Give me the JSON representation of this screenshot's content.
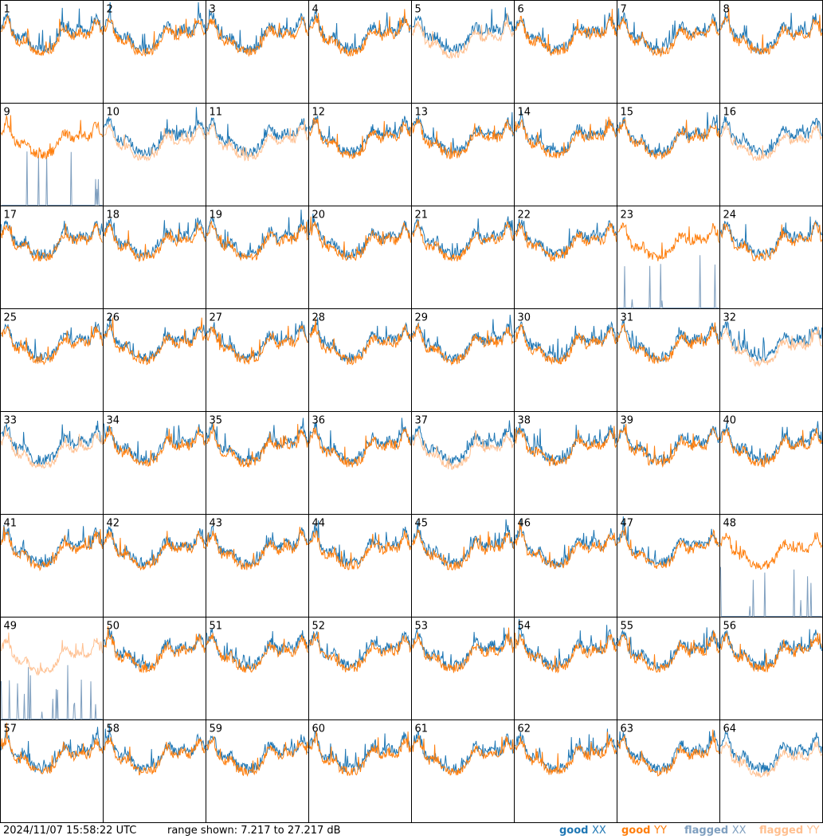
{
  "chart_data": {
    "type": "line",
    "layout": "8x8 small multiples (64 antenna panels)",
    "panels": [
      {
        "label": "1",
        "xx": "good",
        "yy": "good"
      },
      {
        "label": "2",
        "xx": "good",
        "yy": "good"
      },
      {
        "label": "3",
        "xx": "good",
        "yy": "good"
      },
      {
        "label": "4",
        "xx": "good",
        "yy": "good"
      },
      {
        "label": "5",
        "xx": "good",
        "yy": "flagged"
      },
      {
        "label": "6",
        "xx": "good",
        "yy": "good"
      },
      {
        "label": "7",
        "xx": "good",
        "yy": "good"
      },
      {
        "label": "8",
        "xx": "good",
        "yy": "good"
      },
      {
        "label": "9",
        "xx": "flagged",
        "yy": "good"
      },
      {
        "label": "10",
        "xx": "good",
        "yy": "flagged"
      },
      {
        "label": "11",
        "xx": "good",
        "yy": "flagged"
      },
      {
        "label": "12",
        "xx": "good",
        "yy": "good"
      },
      {
        "label": "13",
        "xx": "good",
        "yy": "good"
      },
      {
        "label": "14",
        "xx": "good",
        "yy": "good"
      },
      {
        "label": "15",
        "xx": "good",
        "yy": "good"
      },
      {
        "label": "16",
        "xx": "good",
        "yy": "flagged"
      },
      {
        "label": "17",
        "xx": "good",
        "yy": "good"
      },
      {
        "label": "18",
        "xx": "good",
        "yy": "good"
      },
      {
        "label": "19",
        "xx": "good",
        "yy": "good"
      },
      {
        "label": "20",
        "xx": "good",
        "yy": "good"
      },
      {
        "label": "21",
        "xx": "good",
        "yy": "good"
      },
      {
        "label": "22",
        "xx": "good",
        "yy": "good"
      },
      {
        "label": "23",
        "xx": "flagged",
        "yy": "good"
      },
      {
        "label": "24",
        "xx": "good",
        "yy": "good"
      },
      {
        "label": "25",
        "xx": "good",
        "yy": "good"
      },
      {
        "label": "26",
        "xx": "good",
        "yy": "good"
      },
      {
        "label": "27",
        "xx": "good",
        "yy": "good"
      },
      {
        "label": "28",
        "xx": "good",
        "yy": "good"
      },
      {
        "label": "29",
        "xx": "good",
        "yy": "good"
      },
      {
        "label": "30",
        "xx": "good",
        "yy": "good"
      },
      {
        "label": "31",
        "xx": "good",
        "yy": "good"
      },
      {
        "label": "32",
        "xx": "good",
        "yy": "flagged"
      },
      {
        "label": "33",
        "xx": "good",
        "yy": "flagged"
      },
      {
        "label": "34",
        "xx": "good",
        "yy": "good"
      },
      {
        "label": "35",
        "xx": "good",
        "yy": "good"
      },
      {
        "label": "36",
        "xx": "good",
        "yy": "good"
      },
      {
        "label": "37",
        "xx": "good",
        "yy": "flagged"
      },
      {
        "label": "38",
        "xx": "good",
        "yy": "good"
      },
      {
        "label": "39",
        "xx": "good",
        "yy": "good"
      },
      {
        "label": "40",
        "xx": "good",
        "yy": "good"
      },
      {
        "label": "41",
        "xx": "good",
        "yy": "good"
      },
      {
        "label": "42",
        "xx": "good",
        "yy": "good"
      },
      {
        "label": "43",
        "xx": "good",
        "yy": "good"
      },
      {
        "label": "44",
        "xx": "good",
        "yy": "good"
      },
      {
        "label": "45",
        "xx": "good",
        "yy": "good"
      },
      {
        "label": "46",
        "xx": "good",
        "yy": "good"
      },
      {
        "label": "47",
        "xx": "good",
        "yy": "good"
      },
      {
        "label": "48",
        "xx": "flagged",
        "yy": "good"
      },
      {
        "label": "49",
        "xx": "flagged",
        "yy": "flagged"
      },
      {
        "label": "50",
        "xx": "good",
        "yy": "good"
      },
      {
        "label": "51",
        "xx": "good",
        "yy": "good"
      },
      {
        "label": "52",
        "xx": "good",
        "yy": "good"
      },
      {
        "label": "53",
        "xx": "good",
        "yy": "good"
      },
      {
        "label": "54",
        "xx": "good",
        "yy": "good"
      },
      {
        "label": "55",
        "xx": "good",
        "yy": "good"
      },
      {
        "label": "56",
        "xx": "good",
        "yy": "good"
      },
      {
        "label": "57",
        "xx": "good",
        "yy": "good"
      },
      {
        "label": "58",
        "xx": "good",
        "yy": "good"
      },
      {
        "label": "59",
        "xx": "good",
        "yy": "good"
      },
      {
        "label": "60",
        "xx": "good",
        "yy": "good"
      },
      {
        "label": "61",
        "xx": "good",
        "yy": "good"
      },
      {
        "label": "62",
        "xx": "good",
        "yy": "good"
      },
      {
        "label": "63",
        "xx": "good",
        "yy": "good"
      },
      {
        "label": "64",
        "xx": "good",
        "yy": "flagged"
      }
    ],
    "ylim": [
      7.217,
      27.217
    ],
    "legend": {
      "placement": "bottom-right",
      "entries": [
        {
          "word": "good",
          "pol": "XX",
          "color": "#1f77b4"
        },
        {
          "word": "good",
          "pol": "YY",
          "color": "#ff7f0e"
        },
        {
          "word": "flagged",
          "pol": "XX",
          "color": "#7f9fbf"
        },
        {
          "word": "flagged",
          "pol": "YY",
          "color": "#ffbf8f"
        }
      ]
    }
  },
  "footer": {
    "timestamp": "2024/11/07 15:58:22 UTC",
    "range": "range shown: 7.217 to 27.217 dB"
  },
  "colors": {
    "good_xx": "#1f77b4",
    "good_yy": "#ff7f0e",
    "flagged_xx": "#7f9fbf",
    "flagged_yy": "#ffbf8f"
  }
}
